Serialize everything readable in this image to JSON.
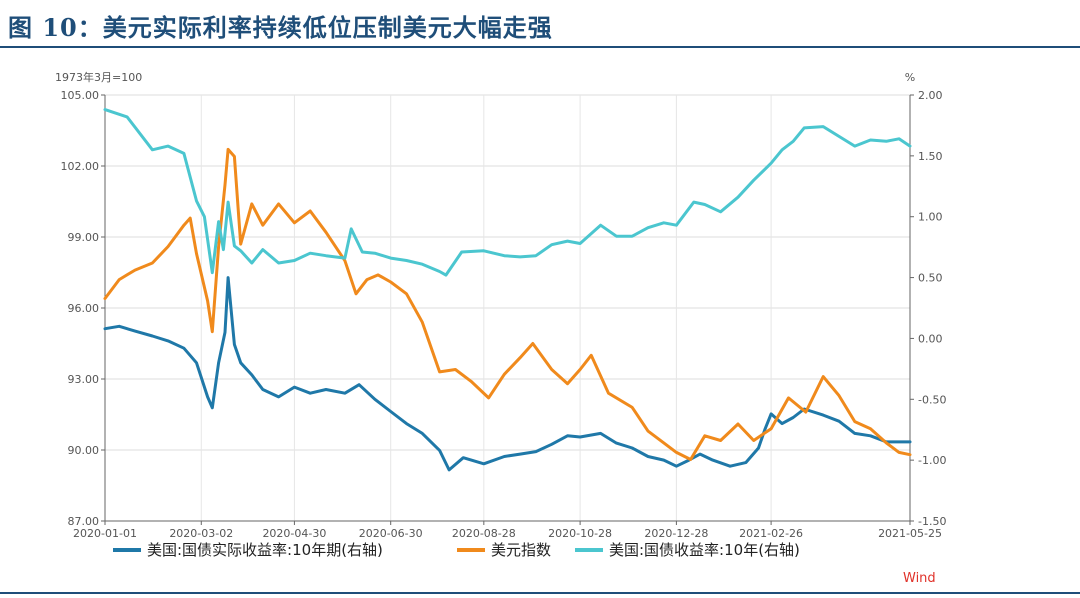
{
  "title": "图 10：美元实际利率持续低位压制美元大幅走强",
  "source": "Wind",
  "chart_data": {
    "type": "line",
    "left_axis": {
      "label": "1973年3月=100",
      "min": 87,
      "max": 105,
      "ticks": [
        "105.00",
        "102.00",
        "99.00",
        "96.00",
        "93.00",
        "90.00",
        "87.00"
      ]
    },
    "right_axis": {
      "label": "%",
      "min": -1.5,
      "max": 2.0,
      "ticks": [
        "2.00",
        "1.50",
        "1.00",
        "0.50",
        "0.00",
        "-0.50",
        "-1.00",
        "-1.50"
      ]
    },
    "x_range": [
      "2020-01-01",
      "2021-05-25"
    ],
    "x_ticks": [
      "2020-01-01",
      "2020-03-02",
      "2020-04-30",
      "2020-06-30",
      "2020-08-28",
      "2020-10-28",
      "2020-12-28",
      "2021-02-26",
      "2021-05-25"
    ],
    "grid": true,
    "legend_position": "bottom",
    "series": [
      {
        "name": "美国:国债实际收益率:10年期(右轴)",
        "axis": "right",
        "color": "#1f78a8",
        "points": [
          [
            "2020-01-01",
            0.08
          ],
          [
            "2020-01-10",
            0.1
          ],
          [
            "2020-01-20",
            0.06
          ],
          [
            "2020-01-31",
            0.02
          ],
          [
            "2020-02-10",
            -0.02
          ],
          [
            "2020-02-20",
            -0.08
          ],
          [
            "2020-02-28",
            -0.2
          ],
          [
            "2020-03-06",
            -0.48
          ],
          [
            "2020-03-09",
            -0.57
          ],
          [
            "2020-03-13",
            -0.2
          ],
          [
            "2020-03-17",
            0.05
          ],
          [
            "2020-03-19",
            0.5
          ],
          [
            "2020-03-23",
            -0.05
          ],
          [
            "2020-03-27",
            -0.2
          ],
          [
            "2020-04-03",
            -0.3
          ],
          [
            "2020-04-10",
            -0.42
          ],
          [
            "2020-04-20",
            -0.48
          ],
          [
            "2020-04-30",
            -0.4
          ],
          [
            "2020-05-10",
            -0.45
          ],
          [
            "2020-05-20",
            -0.42
          ],
          [
            "2020-06-01",
            -0.45
          ],
          [
            "2020-06-10",
            -0.38
          ],
          [
            "2020-06-20",
            -0.5
          ],
          [
            "2020-06-30",
            -0.6
          ],
          [
            "2020-07-10",
            -0.7
          ],
          [
            "2020-07-20",
            -0.78
          ],
          [
            "2020-07-31",
            -0.92
          ],
          [
            "2020-08-06",
            -1.08
          ],
          [
            "2020-08-15",
            -0.98
          ],
          [
            "2020-08-28",
            -1.03
          ],
          [
            "2020-09-10",
            -0.97
          ],
          [
            "2020-09-20",
            -0.95
          ],
          [
            "2020-09-30",
            -0.93
          ],
          [
            "2020-10-10",
            -0.87
          ],
          [
            "2020-10-20",
            -0.8
          ],
          [
            "2020-10-28",
            -0.81
          ],
          [
            "2020-11-10",
            -0.78
          ],
          [
            "2020-11-20",
            -0.86
          ],
          [
            "2020-11-30",
            -0.9
          ],
          [
            "2020-12-10",
            -0.97
          ],
          [
            "2020-12-20",
            -1.0
          ],
          [
            "2020-12-28",
            -1.05
          ],
          [
            "2021-01-05",
            -1.0
          ],
          [
            "2021-01-12",
            -0.95
          ],
          [
            "2021-01-20",
            -1.0
          ],
          [
            "2021-01-31",
            -1.05
          ],
          [
            "2021-02-10",
            -1.02
          ],
          [
            "2021-02-18",
            -0.9
          ],
          [
            "2021-02-22",
            -0.75
          ],
          [
            "2021-02-26",
            -0.62
          ],
          [
            "2021-03-05",
            -0.7
          ],
          [
            "2021-03-12",
            -0.65
          ],
          [
            "2021-03-19",
            -0.58
          ],
          [
            "2021-03-31",
            -0.63
          ],
          [
            "2021-04-10",
            -0.68
          ],
          [
            "2021-04-20",
            -0.78
          ],
          [
            "2021-04-30",
            -0.8
          ],
          [
            "2021-05-10",
            -0.85
          ],
          [
            "2021-05-18",
            -0.85
          ],
          [
            "2021-05-25",
            -0.85
          ]
        ]
      },
      {
        "name": "美元指数",
        "axis": "left",
        "color": "#f08a1c",
        "points": [
          [
            "2020-01-01",
            96.4
          ],
          [
            "2020-01-10",
            97.2
          ],
          [
            "2020-01-20",
            97.6
          ],
          [
            "2020-01-31",
            97.9
          ],
          [
            "2020-02-10",
            98.6
          ],
          [
            "2020-02-20",
            99.5
          ],
          [
            "2020-02-24",
            99.8
          ],
          [
            "2020-02-28",
            98.3
          ],
          [
            "2020-03-06",
            96.3
          ],
          [
            "2020-03-09",
            95.0
          ],
          [
            "2020-03-13",
            98.6
          ],
          [
            "2020-03-17",
            101.2
          ],
          [
            "2020-03-19",
            102.7
          ],
          [
            "2020-03-23",
            102.4
          ],
          [
            "2020-03-27",
            98.7
          ],
          [
            "2020-04-03",
            100.4
          ],
          [
            "2020-04-10",
            99.5
          ],
          [
            "2020-04-20",
            100.4
          ],
          [
            "2020-04-30",
            99.6
          ],
          [
            "2020-05-10",
            100.1
          ],
          [
            "2020-05-20",
            99.2
          ],
          [
            "2020-06-01",
            98.0
          ],
          [
            "2020-06-08",
            96.6
          ],
          [
            "2020-06-15",
            97.2
          ],
          [
            "2020-06-22",
            97.4
          ],
          [
            "2020-06-30",
            97.1
          ],
          [
            "2020-07-10",
            96.6
          ],
          [
            "2020-07-20",
            95.4
          ],
          [
            "2020-07-31",
            93.3
          ],
          [
            "2020-08-10",
            93.4
          ],
          [
            "2020-08-20",
            92.9
          ],
          [
            "2020-08-31",
            92.2
          ],
          [
            "2020-09-10",
            93.2
          ],
          [
            "2020-09-20",
            93.9
          ],
          [
            "2020-09-28",
            94.5
          ],
          [
            "2020-10-10",
            93.4
          ],
          [
            "2020-10-20",
            92.8
          ],
          [
            "2020-10-28",
            93.4
          ],
          [
            "2020-11-04",
            94.0
          ],
          [
            "2020-11-15",
            92.4
          ],
          [
            "2020-11-30",
            91.8
          ],
          [
            "2020-12-10",
            90.8
          ],
          [
            "2020-12-20",
            90.3
          ],
          [
            "2020-12-28",
            89.9
          ],
          [
            "2021-01-06",
            89.6
          ],
          [
            "2021-01-15",
            90.6
          ],
          [
            "2021-01-25",
            90.4
          ],
          [
            "2021-02-05",
            91.1
          ],
          [
            "2021-02-15",
            90.4
          ],
          [
            "2021-02-26",
            90.9
          ],
          [
            "2021-03-09",
            92.2
          ],
          [
            "2021-03-20",
            91.6
          ],
          [
            "2021-03-31",
            93.1
          ],
          [
            "2021-04-10",
            92.3
          ],
          [
            "2021-04-20",
            91.2
          ],
          [
            "2021-04-30",
            90.9
          ],
          [
            "2021-05-10",
            90.3
          ],
          [
            "2021-05-18",
            89.9
          ],
          [
            "2021-05-25",
            89.8
          ]
        ]
      },
      {
        "name": "美国:国债收益率:10年(右轴)",
        "axis": "right",
        "color": "#4bc6cf",
        "points": [
          [
            "2020-01-01",
            1.88
          ],
          [
            "2020-01-15",
            1.82
          ],
          [
            "2020-01-31",
            1.55
          ],
          [
            "2020-02-10",
            1.58
          ],
          [
            "2020-02-20",
            1.52
          ],
          [
            "2020-02-28",
            1.13
          ],
          [
            "2020-03-04",
            1.0
          ],
          [
            "2020-03-09",
            0.54
          ],
          [
            "2020-03-13",
            0.96
          ],
          [
            "2020-03-16",
            0.73
          ],
          [
            "2020-03-19",
            1.12
          ],
          [
            "2020-03-23",
            0.76
          ],
          [
            "2020-03-27",
            0.72
          ],
          [
            "2020-04-03",
            0.62
          ],
          [
            "2020-04-10",
            0.73
          ],
          [
            "2020-04-20",
            0.62
          ],
          [
            "2020-04-30",
            0.64
          ],
          [
            "2020-05-10",
            0.7
          ],
          [
            "2020-05-20",
            0.68
          ],
          [
            "2020-06-01",
            0.66
          ],
          [
            "2020-06-05",
            0.9
          ],
          [
            "2020-06-12",
            0.71
          ],
          [
            "2020-06-20",
            0.7
          ],
          [
            "2020-06-30",
            0.66
          ],
          [
            "2020-07-10",
            0.64
          ],
          [
            "2020-07-20",
            0.61
          ],
          [
            "2020-07-31",
            0.55
          ],
          [
            "2020-08-04",
            0.52
          ],
          [
            "2020-08-14",
            0.71
          ],
          [
            "2020-08-28",
            0.72
          ],
          [
            "2020-09-10",
            0.68
          ],
          [
            "2020-09-20",
            0.67
          ],
          [
            "2020-09-30",
            0.68
          ],
          [
            "2020-10-10",
            0.77
          ],
          [
            "2020-10-20",
            0.8
          ],
          [
            "2020-10-28",
            0.78
          ],
          [
            "2020-11-10",
            0.93
          ],
          [
            "2020-11-20",
            0.84
          ],
          [
            "2020-11-30",
            0.84
          ],
          [
            "2020-12-10",
            0.91
          ],
          [
            "2020-12-20",
            0.95
          ],
          [
            "2020-12-28",
            0.93
          ],
          [
            "2021-01-08",
            1.12
          ],
          [
            "2021-01-15",
            1.1
          ],
          [
            "2021-01-25",
            1.04
          ],
          [
            "2021-02-05",
            1.16
          ],
          [
            "2021-02-15",
            1.3
          ],
          [
            "2021-02-26",
            1.44
          ],
          [
            "2021-03-05",
            1.55
          ],
          [
            "2021-03-12",
            1.62
          ],
          [
            "2021-03-19",
            1.73
          ],
          [
            "2021-03-31",
            1.74
          ],
          [
            "2021-04-10",
            1.66
          ],
          [
            "2021-04-20",
            1.58
          ],
          [
            "2021-04-30",
            1.63
          ],
          [
            "2021-05-10",
            1.62
          ],
          [
            "2021-05-18",
            1.64
          ],
          [
            "2021-05-25",
            1.58
          ]
        ]
      }
    ]
  }
}
